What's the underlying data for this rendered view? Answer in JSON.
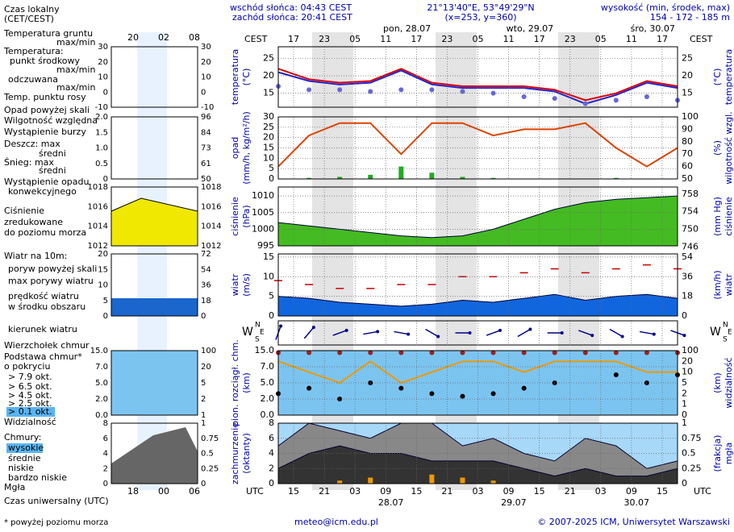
{
  "header": {
    "sunrise": "wschód słońca: 04:43 CEST",
    "sunset": "zachód słońca: 20:41 CEST",
    "coords": "21°13'40\"E, 53°49'29\"N",
    "grid": "(x=253, y=360)",
    "elev_title": "wysokość (min, środek, max)",
    "elev": "154 - 172 - 185 m"
  },
  "footer": {
    "email": "meteo@icm.edu.pl",
    "copyright": "© 2007-2025 ICM, Uniwersytet Warszawski"
  },
  "time_axis": {
    "xlim": [
      -10,
      68
    ],
    "x": [
      -10,
      -4,
      2,
      8,
      14,
      20,
      26,
      32,
      38,
      44,
      50,
      56,
      62,
      68
    ],
    "cest": "CEST",
    "utc": "UTC",
    "cest_ticks": [
      {
        "value": -7,
        "label": "17"
      },
      {
        "value": -1,
        "label": "23"
      },
      {
        "value": 5,
        "label": "05"
      },
      {
        "value": 11,
        "label": "11"
      },
      {
        "value": 17,
        "label": "17"
      },
      {
        "value": 23,
        "label": "23"
      },
      {
        "value": 29,
        "label": "05"
      },
      {
        "value": 35,
        "label": "11"
      },
      {
        "value": 41,
        "label": "17"
      },
      {
        "value": 47,
        "label": "23"
      },
      {
        "value": 53,
        "label": "05"
      },
      {
        "value": 59,
        "label": "11"
      },
      {
        "value": 65,
        "label": "17"
      }
    ],
    "utc_ticks": [
      {
        "value": -7,
        "label": "15"
      },
      {
        "value": -1,
        "label": "21"
      },
      {
        "value": 5,
        "label": "03"
      },
      {
        "value": 11,
        "label": "09"
      },
      {
        "value": 17,
        "label": "15"
      },
      {
        "value": 23,
        "label": "21"
      },
      {
        "value": 29,
        "label": "03"
      },
      {
        "value": 35,
        "label": "09"
      },
      {
        "value": 41,
        "label": "15"
      },
      {
        "value": 47,
        "label": "21"
      },
      {
        "value": 53,
        "label": "03"
      },
      {
        "value": 59,
        "label": "09"
      },
      {
        "value": 65,
        "label": "15"
      }
    ],
    "days": [
      "pon, 28.07",
      "wto, 29.07",
      "śro, 30.07"
    ],
    "dates": [
      "28.07",
      "29.07",
      "30.07"
    ],
    "compass": [
      "W",
      "N",
      "S",
      "E"
    ]
  },
  "chart_data": [
    {
      "type": "line",
      "ylabel": [
        "temperatura",
        "(°C)"
      ],
      "y2label": [
        "(°C)",
        "temperatura"
      ],
      "ylim": [
        11,
        28.3
      ],
      "yticks": [
        15,
        20,
        25
      ],
      "y2lim": [
        11,
        28.3
      ],
      "y2ticks": [
        15,
        20,
        25
      ],
      "grid": true,
      "series": [
        {
          "color": "#dd0000",
          "style": "line",
          "values": [
            22,
            19,
            18,
            18.5,
            22,
            18,
            17,
            17,
            17,
            16,
            13,
            15,
            18.5,
            17
          ]
        },
        {
          "color": "#2222cc",
          "style": "line",
          "values": [
            21,
            18.5,
            17.5,
            18,
            21.5,
            17.5,
            16.5,
            16.5,
            16.5,
            15.5,
            12,
            14.5,
            18,
            16.5
          ]
        },
        {
          "color": "#6666dd",
          "style": "dots",
          "values": [
            17,
            16,
            16,
            15.5,
            16,
            16,
            15.5,
            15,
            14,
            13.5,
            12,
            13,
            14,
            13
          ]
        }
      ]
    },
    {
      "type": "line",
      "ylabel": [
        "opad",
        "(mm/h, kg/m²/h)"
      ],
      "y2label": [
        "(%)",
        "wilgotność wzgl."
      ],
      "ylim": [
        0,
        30
      ],
      "yticks": [
        0,
        5,
        10,
        15,
        20,
        25,
        30
      ],
      "y2lim": [
        50,
        100
      ],
      "y2ticks": [
        50,
        60,
        70,
        80,
        90,
        100
      ],
      "grid": true,
      "series": [
        {
          "color": "#22aa22",
          "style": "bars",
          "values": [
            0,
            0.5,
            1,
            2,
            6,
            3,
            1,
            0.5,
            0,
            0,
            0,
            0.5,
            0,
            0
          ]
        },
        {
          "color": "#dd4400",
          "style": "line",
          "axis": "y2",
          "values": [
            60,
            85,
            95,
            95,
            70,
            95,
            95,
            85,
            90,
            90,
            95,
            75,
            60,
            75
          ]
        }
      ]
    },
    {
      "type": "line",
      "ylabel": [
        "ciśnienie",
        "(hPa)"
      ],
      "y2label": [
        "(mm Hg)",
        "ciśnienie"
      ],
      "ylim": [
        995,
        1012.7
      ],
      "yticks": [
        995,
        1000,
        1005,
        1010
      ],
      "y2lim": [
        746.3,
        759.6
      ],
      "y2ticks": [
        746,
        750,
        754,
        758
      ],
      "grid": true,
      "series": [
        {
          "color": "#44bb22",
          "style": "area",
          "values": [
            1002,
            1001,
            1000,
            999,
            998,
            997.5,
            998,
            1000,
            1003,
            1006,
            1008,
            1009,
            1009.5,
            1010
          ]
        }
      ]
    },
    {
      "type": "line",
      "ylabel": [
        "wiatr",
        "(m/s)"
      ],
      "y2label": [
        "(km/h)",
        "wiatr"
      ],
      "ylim": [
        0,
        15.8
      ],
      "yticks": [
        0,
        5,
        10,
        15
      ],
      "y2lim": [
        0,
        56.9
      ],
      "y2ticks": [
        0,
        18,
        36,
        54
      ],
      "grid": true,
      "series": [
        {
          "color": "#1166dd",
          "style": "area",
          "values": [
            5,
            4.5,
            3.5,
            3,
            2.5,
            3,
            4,
            3.5,
            4.5,
            5.5,
            4,
            5,
            5.5,
            4.5
          ]
        },
        {
          "color": "#cc0000",
          "style": "dashes",
          "values": [
            9,
            8,
            7,
            7,
            8,
            8,
            10,
            10,
            11,
            12,
            11,
            12,
            13,
            12
          ]
        }
      ]
    },
    {
      "type": "arrows",
      "series": [
        {
          "color": "#000088",
          "style": "arrows",
          "values": [
            200,
            220,
            250,
            260,
            280,
            300,
            270,
            250,
            240,
            270,
            290,
            300,
            280,
            290
          ]
        }
      ]
    },
    {
      "type": "line",
      "ylabel": [
        "pion. rozciągł. chm.",
        "(km)"
      ],
      "y2label": [
        "(km)",
        "widzialność"
      ],
      "scale": "piecewise",
      "ylim": [
        0,
        15
      ],
      "yticks": [
        {
          "value": 0,
          "label": "0.0"
        },
        {
          "value": 2,
          "label": "2.0"
        },
        {
          "value": 5,
          "label": "5.0"
        },
        {
          "value": 7,
          "label": "7.0"
        },
        {
          "value": 15,
          "label": "15.0"
        }
      ],
      "y2lim": [
        0,
        100
      ],
      "y2ticks": [
        0,
        1,
        2,
        5,
        10,
        20,
        100
      ],
      "grid": true,
      "background": "#7cc4f0",
      "series": [
        {
          "color": "#992222",
          "style": "dots",
          "values": [
            14,
            14,
            14,
            14,
            14,
            14,
            14,
            14,
            14,
            14,
            14,
            14,
            14,
            14
          ]
        },
        {
          "color": "#000000",
          "style": "dots",
          "values": [
            3,
            4,
            2,
            5,
            4,
            3,
            2.5,
            3,
            4,
            5,
            null,
            6,
            5,
            6
          ]
        },
        {
          "color": "#ee9900",
          "style": "line",
          "axis": "y2",
          "values": [
            20,
            10,
            5,
            20,
            5,
            10,
            20,
            20,
            10,
            20,
            20,
            20,
            10,
            10
          ]
        }
      ]
    },
    {
      "type": "line",
      "ylabel": [
        "zachmurzenie",
        "(oktanty)"
      ],
      "y2label": [
        "(frakcja)",
        "mgła"
      ],
      "ylim": [
        0,
        8
      ],
      "yticks": [
        0,
        2,
        4,
        6,
        8
      ],
      "y2lim": [
        0,
        1
      ],
      "y2ticks": [
        0,
        0.25,
        0.5,
        0.75,
        1
      ],
      "grid": true,
      "background": "#a8d8f8",
      "series": [
        {
          "color": "#888888",
          "style": "area",
          "values": [
            5,
            8,
            7,
            6,
            8,
            8,
            5,
            6,
            4,
            3,
            6,
            5,
            2,
            3
          ]
        },
        {
          "color": "#333333",
          "style": "area",
          "values": [
            2,
            4,
            5,
            4,
            4,
            3,
            3,
            3,
            2,
            1,
            2,
            1,
            1,
            2
          ]
        },
        {
          "color": "#ee9900",
          "style": "bars",
          "axis": "y2",
          "values": [
            0,
            0,
            0.05,
            0.1,
            0,
            0.15,
            0.1,
            0.05,
            0,
            0,
            0,
            0,
            0,
            0
          ]
        }
      ]
    }
  ],
  "mini": {
    "top_ticks": [
      "20",
      "02",
      "08"
    ],
    "bottom_ticks": [
      "18",
      "00",
      "06"
    ],
    "panels": [
      {
        "left": [
          30,
          20,
          10,
          0,
          -10
        ],
        "right": [
          30,
          20,
          10,
          0,
          -10
        ]
      },
      {
        "left": [
          "2.0",
          "1.5",
          "1.0",
          "0.5",
          "0"
        ],
        "right": [
          96,
          84,
          73,
          61,
          50
        ]
      },
      {
        "left": [
          1018,
          1016,
          1014,
          1012
        ],
        "right": [
          1018,
          1016,
          1014,
          1012
        ]
      },
      {
        "left": [
          20,
          15,
          10,
          5,
          0
        ],
        "right": [
          72,
          54,
          36,
          18,
          0
        ]
      },
      {
        "left": [],
        "right": []
      },
      {
        "left": [
          "15.0",
          "7.0",
          "5.0",
          "2.0",
          "0.0"
        ],
        "right": [
          100,
          20,
          5,
          2,
          1
        ]
      },
      {
        "left": [
          8,
          6,
          4,
          2,
          0
        ],
        "right": [
          1,
          "0.75",
          "0.5",
          "0.25",
          0
        ]
      }
    ]
  },
  "legend": [
    "Czas lokalny",
    "(CET/CEST)",
    "Temperatura gruntu",
    "max/min",
    "Temperatura:",
    "punkt środkowy",
    "max/min",
    "odczuwana",
    "max/min",
    "Temp. punktu rosy",
    "Opad powyżej skali",
    "Wilgotność względna",
    "Wystąpienie burzy",
    "Deszcz: max",
    "średni",
    "Śnieg: max",
    "średni",
    "Wystąpienie opadu",
    "konwekcyjnego",
    "Ciśnienie",
    "zredukowane",
    "do poziomu morza",
    "Wiatr na 10m:",
    "poryw powyżej skali",
    "max porywy wiatru",
    "prędkość wiatru",
    "w środku obszaru",
    "kierunek wiatru",
    "Wierzchołek chmur",
    "Podstawa chmur*",
    "o pokryciu",
    "> 7.9 okt.",
    "> 6.5 okt.",
    "> 4.5 okt.",
    "> 2.5 okt.",
    "> 0.1 okt.",
    "Widzialność",
    "Chmury:",
    "wysokie",
    "średnie",
    "niskie",
    "bardzo niskie",
    "Mgła",
    "Czas uniwersalny (UTC)",
    "* powyżej poziomu morza"
  ]
}
